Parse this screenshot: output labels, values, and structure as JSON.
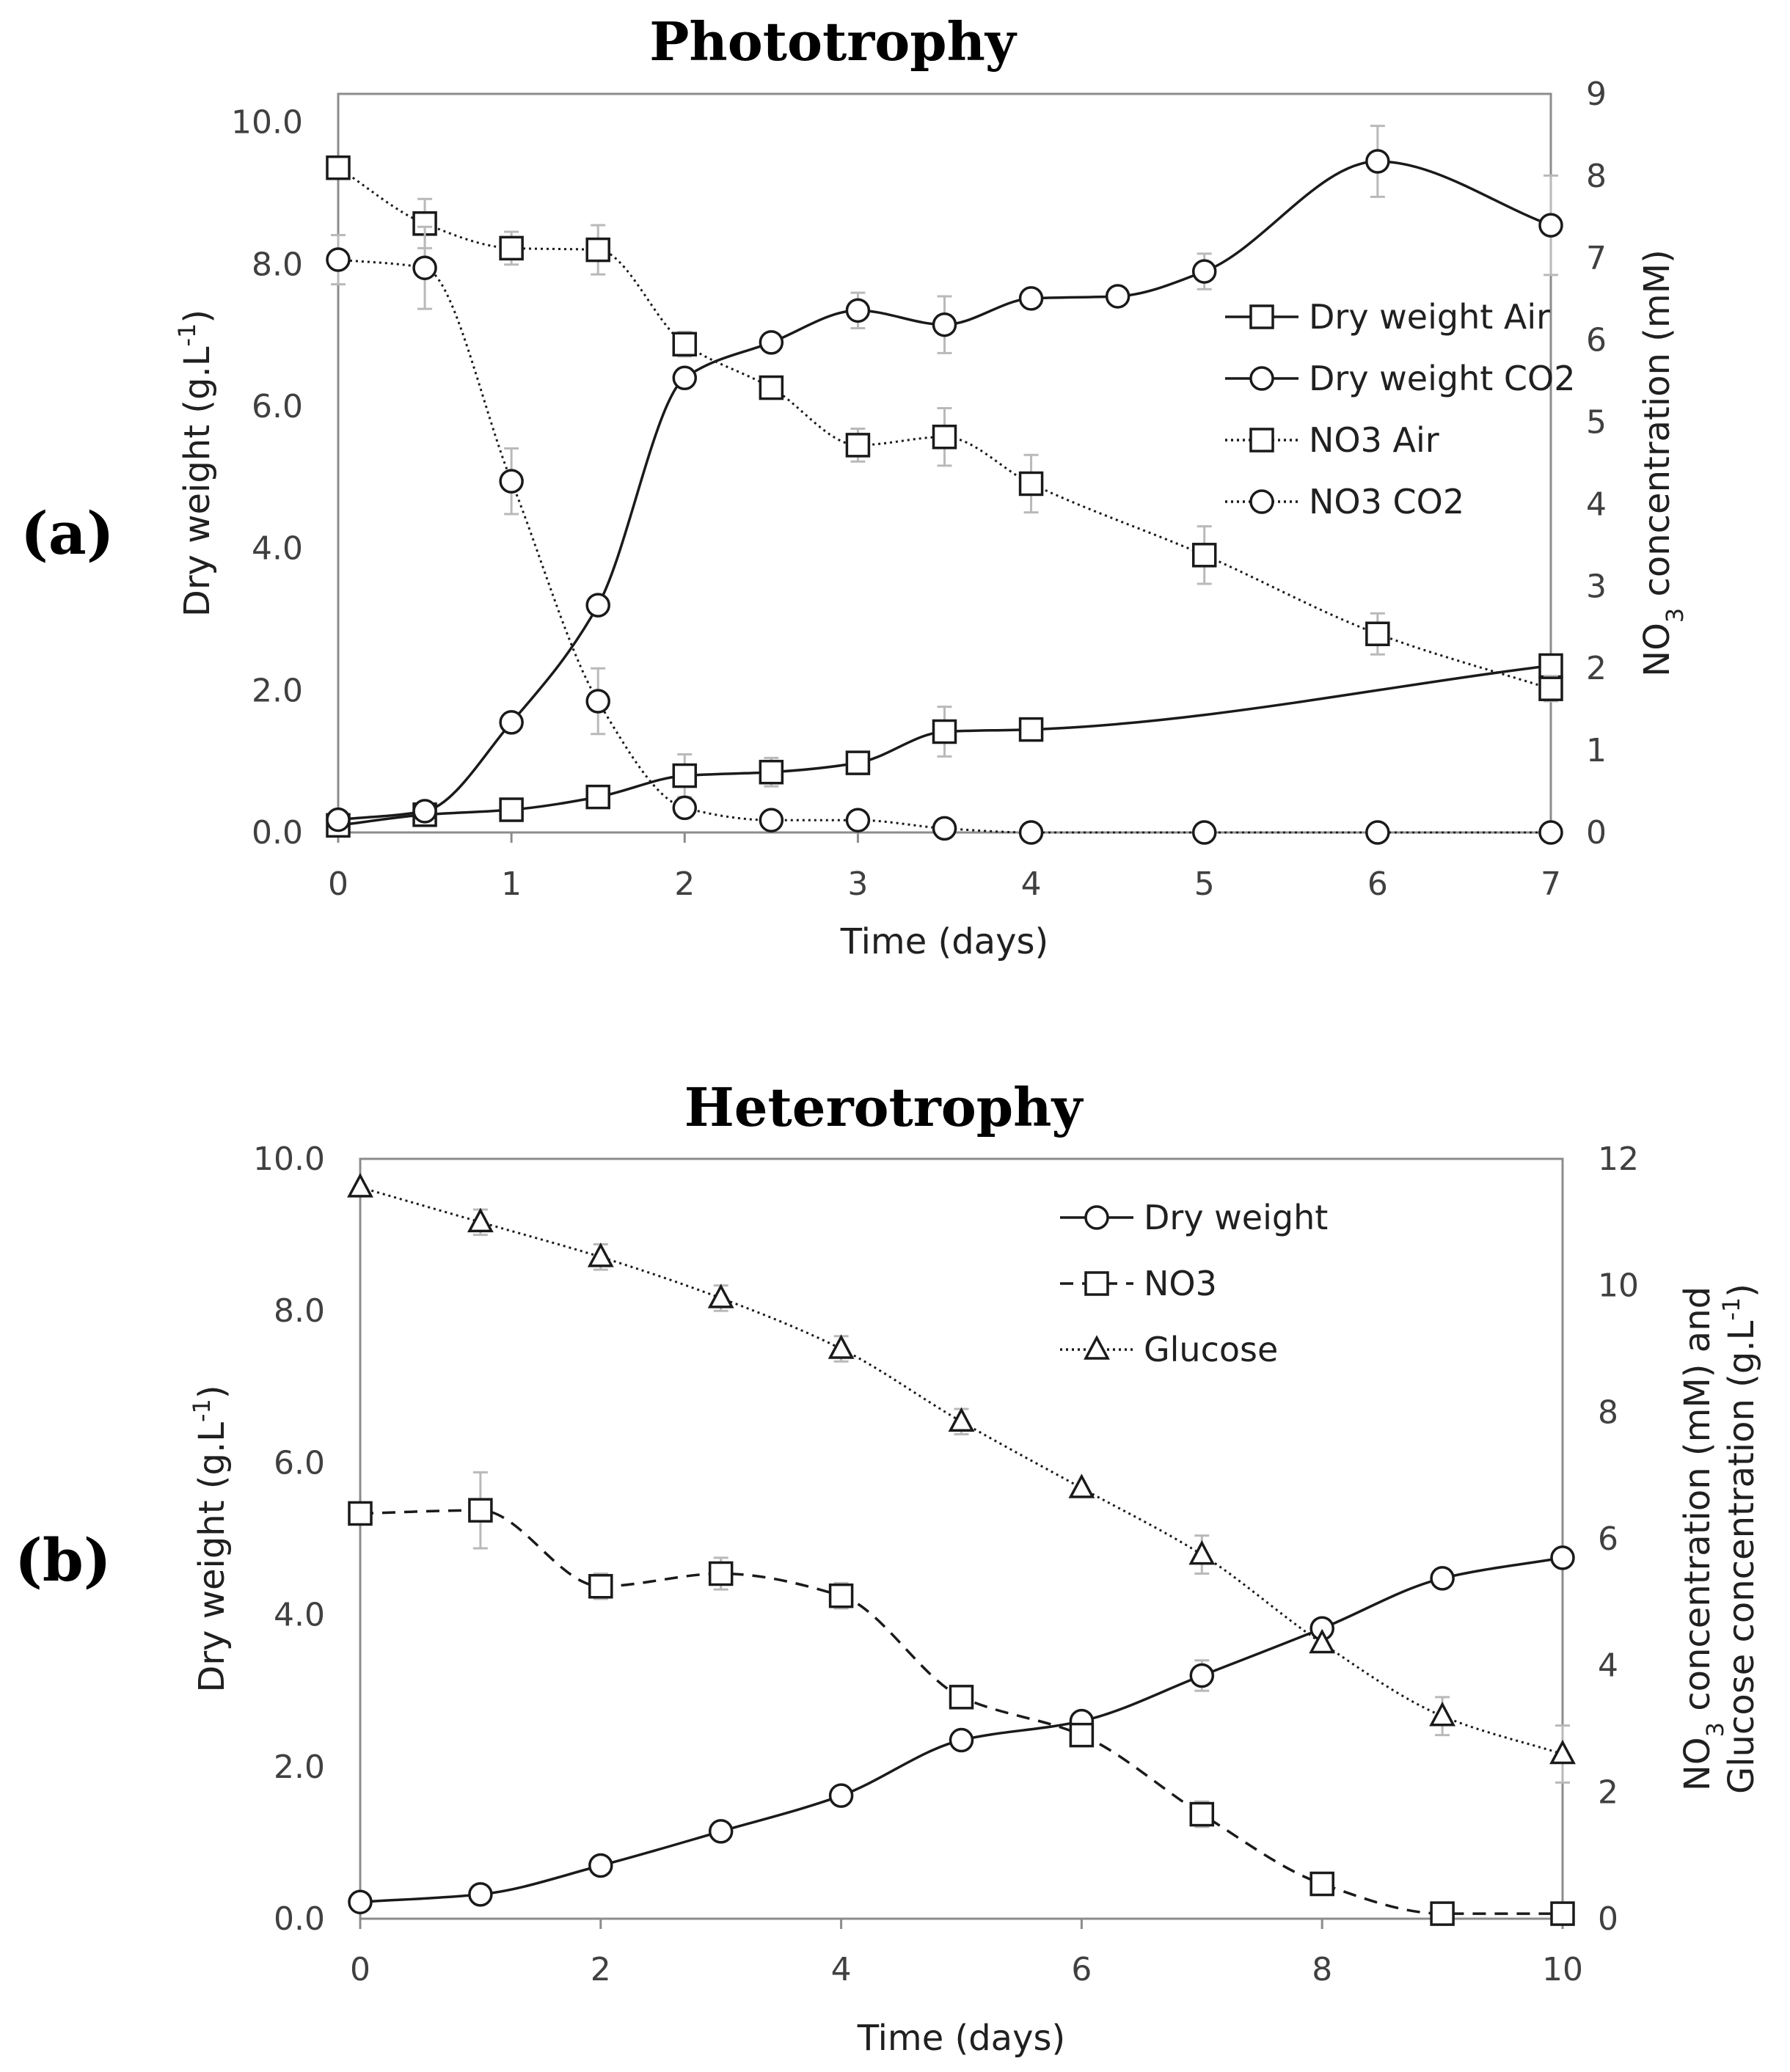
{
  "chart_data": [
    {
      "type": "line",
      "panel_label": "(a)",
      "title": "Phototrophy",
      "xlabel": "Time (days)",
      "ylabel": "Dry weight (g.L-1)",
      "y2label": "NO3 concentration (mM)",
      "xlim": [
        0,
        7
      ],
      "ylim": [
        0,
        10.4
      ],
      "y2lim": [
        0,
        9
      ],
      "xticks": [
        "0",
        "1",
        "2",
        "3",
        "4",
        "5",
        "6",
        "7"
      ],
      "yticks": [
        "0.0",
        "2.0",
        "4.0",
        "6.0",
        "8.0",
        "10.0"
      ],
      "y2ticks": [
        "0",
        "1",
        "2",
        "3",
        "4",
        "5",
        "6",
        "7",
        "8",
        "9"
      ],
      "legend_position": "right",
      "series": [
        {
          "name": "Dry weight Air",
          "axis": "left",
          "marker": "square",
          "style": "solid",
          "x": [
            0,
            0.5,
            1,
            1.5,
            2,
            2.5,
            3,
            3.5,
            4,
            7
          ],
          "y": [
            0.1,
            0.25,
            0.32,
            0.5,
            0.8,
            0.85,
            0.98,
            1.42,
            1.45,
            2.35
          ],
          "err": [
            0,
            0,
            0,
            0,
            0.3,
            0.2,
            0,
            0.35,
            0,
            0
          ]
        },
        {
          "name": "Dry weight CO2",
          "axis": "left",
          "marker": "circle",
          "style": "solid",
          "x": [
            0,
            0.5,
            1,
            1.5,
            2,
            2.5,
            3,
            3.5,
            4,
            4.5,
            5,
            6,
            7
          ],
          "y": [
            0.18,
            0.3,
            1.55,
            3.2,
            6.4,
            6.9,
            7.35,
            7.15,
            7.52,
            7.55,
            7.9,
            9.45,
            8.55
          ],
          "err": [
            0,
            0,
            0,
            0,
            0,
            0,
            0.25,
            0.4,
            0,
            0,
            0.25,
            0.5,
            0.7
          ]
        },
        {
          "name": "NO3 Air",
          "axis": "right",
          "marker": "square",
          "style": "dotted",
          "x": [
            0,
            0.5,
            1,
            1.5,
            2,
            2.5,
            3,
            3.5,
            4,
            5,
            6,
            7
          ],
          "y": [
            8.1,
            7.42,
            7.12,
            7.1,
            5.95,
            5.42,
            4.72,
            4.82,
            4.25,
            3.38,
            2.42,
            1.75
          ],
          "err": [
            0,
            0.3,
            0.2,
            0.3,
            0.15,
            0,
            0.2,
            0.35,
            0.35,
            0.35,
            0.25,
            0.15
          ]
        },
        {
          "name": "NO3 CO2",
          "axis": "right",
          "marker": "circle",
          "style": "dotted",
          "x": [
            0,
            0.5,
            1,
            1.5,
            2,
            2.5,
            3,
            3.5,
            4,
            5,
            6,
            7
          ],
          "y": [
            6.98,
            6.88,
            4.28,
            1.6,
            0.3,
            0.15,
            0.15,
            0.05,
            0,
            0,
            0,
            0
          ],
          "err": [
            0.3,
            0.5,
            0.4,
            0.4,
            0,
            0,
            0,
            0,
            0,
            0,
            0,
            0
          ]
        }
      ]
    },
    {
      "type": "line",
      "panel_label": "(b)",
      "title": "Heterotrophy",
      "xlabel": "Time (days)",
      "ylabel": "Dry weight (g.L-1)",
      "y2label": "NO3 concentration (mM) and Glucose concentration (g.L-1)",
      "y2label_lines": [
        "NO3 concentration (mM) and",
        "Glucose concentration (g.L-1)"
      ],
      "xlim": [
        0,
        10
      ],
      "ylim": [
        0,
        10.0
      ],
      "y2lim": [
        0,
        12
      ],
      "xticks": [
        "0",
        "2",
        "4",
        "6",
        "8",
        "10"
      ],
      "yticks": [
        "0.0",
        "2.0",
        "4.0",
        "6.0",
        "8.0",
        "10.0"
      ],
      "y2ticks": [
        "0",
        "2",
        "4",
        "6",
        "8",
        "10",
        "12"
      ],
      "legend_position": "top-right",
      "series": [
        {
          "name": "Dry weight",
          "axis": "left",
          "marker": "circle",
          "style": "solid",
          "x": [
            0,
            1,
            2,
            3,
            4,
            5,
            6,
            7,
            8,
            9,
            10
          ],
          "y": [
            0.22,
            0.32,
            0.7,
            1.15,
            1.62,
            2.35,
            2.6,
            3.2,
            3.82,
            4.48,
            4.75
          ],
          "err": [
            0,
            0,
            0,
            0,
            0,
            0,
            0,
            0.2,
            0,
            0,
            0
          ]
        },
        {
          "name": "NO3",
          "axis": "right",
          "marker": "square",
          "style": "dashed",
          "x": [
            0,
            1,
            2,
            3,
            4,
            5,
            6,
            7,
            8,
            9,
            10
          ],
          "y": [
            6.4,
            6.45,
            5.25,
            5.45,
            5.1,
            3.5,
            2.9,
            1.65,
            0.55,
            0.08,
            0.08
          ],
          "err": [
            0,
            0.6,
            0.2,
            0.25,
            0.2,
            0,
            0,
            0.2,
            0,
            0,
            0
          ]
        },
        {
          "name": "Glucose",
          "axis": "right",
          "marker": "triangle",
          "style": "dotted",
          "x": [
            0,
            1,
            2,
            3,
            4,
            5,
            6,
            7,
            8,
            9,
            10
          ],
          "y": [
            11.55,
            11.0,
            10.45,
            9.8,
            9.0,
            7.85,
            6.8,
            5.75,
            4.35,
            3.2,
            2.6
          ],
          "err": [
            0,
            0.2,
            0.2,
            0.2,
            0.2,
            0.2,
            0,
            0.3,
            0,
            0.3,
            0.45
          ]
        }
      ]
    }
  ]
}
